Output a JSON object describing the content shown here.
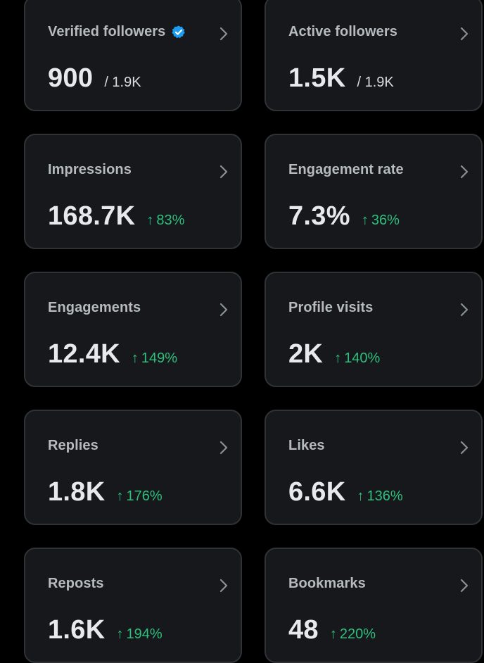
{
  "colors": {
    "background": "#000000",
    "card": "#16181c",
    "border": "#2f3336",
    "label": "#b6bbc0",
    "value": "#e7e9ea",
    "positive": "#2fbf7d",
    "verified_badge": "#1d9bf0"
  },
  "cards": [
    {
      "label": "Verified followers",
      "value": "900",
      "total": "/ 1.9K",
      "verified": true
    },
    {
      "label": "Active followers",
      "value": "1.5K",
      "total": "/ 1.9K"
    },
    {
      "label": "Impressions",
      "value": "168.7K",
      "change": "83%"
    },
    {
      "label": "Engagement rate",
      "value": "7.3%",
      "change": "36%"
    },
    {
      "label": "Engagements",
      "value": "12.4K",
      "change": "149%"
    },
    {
      "label": "Profile visits",
      "value": "2K",
      "change": "140%"
    },
    {
      "label": "Replies",
      "value": "1.8K",
      "change": "176%"
    },
    {
      "label": "Likes",
      "value": "6.6K",
      "change": "136%"
    },
    {
      "label": "Reposts",
      "value": "1.6K",
      "change": "194%"
    },
    {
      "label": "Bookmarks",
      "value": "48",
      "change": "220%"
    }
  ],
  "icons": {
    "chevron": "chevron-right-icon",
    "arrow": "arrow-up-icon",
    "verified": "verified-badge-icon"
  }
}
